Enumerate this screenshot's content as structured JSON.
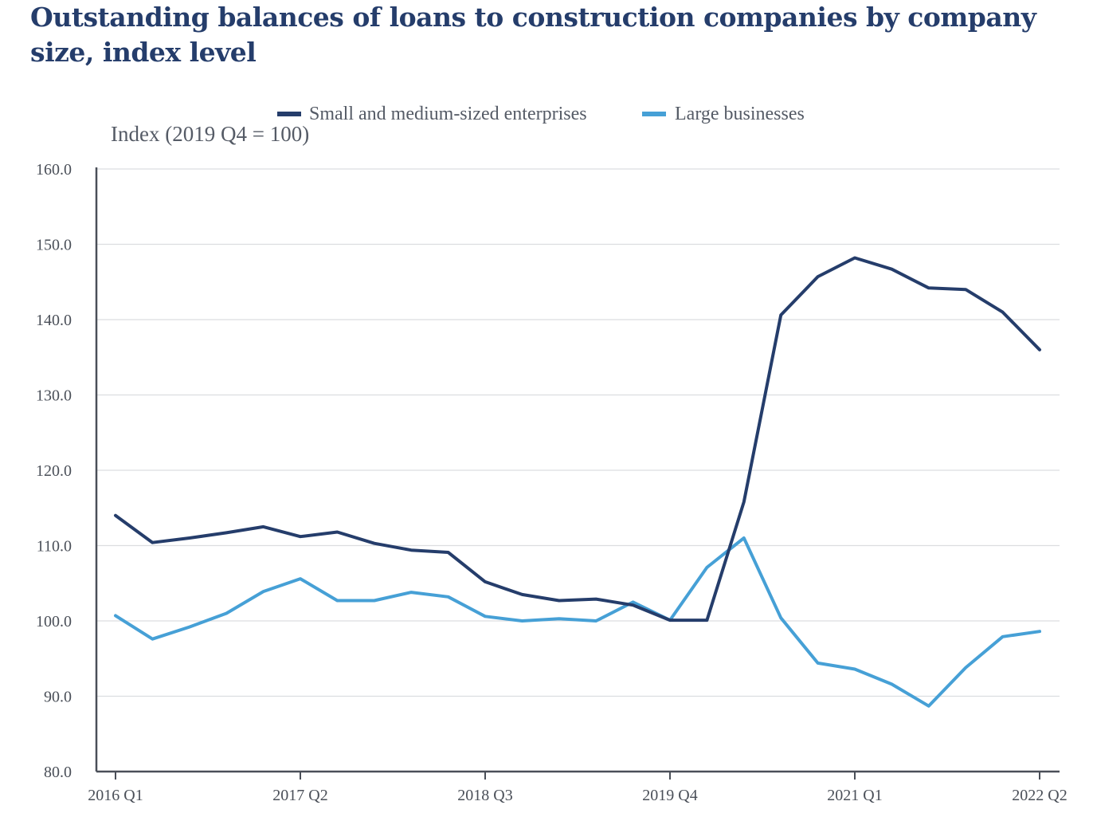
{
  "chart_data": {
    "type": "line",
    "title": "Outstanding balances of loans to construction companies by company size, index level",
    "unit_label": "Index (2019 Q4 = 100)",
    "ylim": [
      80,
      160
    ],
    "y_ticks": [
      "80.0",
      "90.0",
      "100.0",
      "110.0",
      "120.0",
      "130.0",
      "140.0",
      "150.0",
      "160.0"
    ],
    "y_tick_values": [
      80,
      90,
      100,
      110,
      120,
      130,
      140,
      150,
      160
    ],
    "categories": [
      "2016 Q1",
      "2016 Q2",
      "2016 Q3",
      "2016 Q4",
      "2017 Q1",
      "2017 Q2",
      "2017 Q3",
      "2017 Q4",
      "2018 Q1",
      "2018 Q2",
      "2018 Q3",
      "2018 Q4",
      "2019 Q1",
      "2019 Q2",
      "2019 Q3",
      "2019 Q4",
      "2020 Q1",
      "2020 Q2",
      "2020 Q3",
      "2020 Q4",
      "2021 Q1",
      "2021 Q2",
      "2021 Q3",
      "2021 Q4",
      "2022 Q1",
      "2022 Q2"
    ],
    "x_tick_labels": [
      "2016 Q1",
      "2017 Q2",
      "2018 Q3",
      "2019 Q4",
      "2021 Q1",
      "2022 Q2"
    ],
    "x_tick_indices": [
      0,
      5,
      10,
      15,
      20,
      25
    ],
    "grid": true,
    "legend_position": "top",
    "series": [
      {
        "name": "Small and medium-sized enterprises",
        "color": "#253d6b",
        "values": [
          114.0,
          110.4,
          111.0,
          111.7,
          112.5,
          111.2,
          111.8,
          110.3,
          109.4,
          109.1,
          105.2,
          103.5,
          102.7,
          102.9,
          102.1,
          100.1,
          100.1,
          115.8,
          140.6,
          145.7,
          148.2,
          146.7,
          144.2,
          144.0,
          141.0,
          136.0
        ]
      },
      {
        "name": "Large businesses",
        "color": "#46a0d6",
        "values": [
          100.7,
          97.6,
          99.2,
          101.0,
          103.9,
          105.6,
          102.7,
          102.7,
          103.8,
          103.2,
          100.6,
          100.0,
          100.3,
          100.0,
          102.5,
          100.1,
          107.1,
          111.0,
          100.4,
          94.4,
          93.6,
          91.6,
          88.7,
          93.8,
          97.9,
          98.6
        ]
      }
    ]
  }
}
